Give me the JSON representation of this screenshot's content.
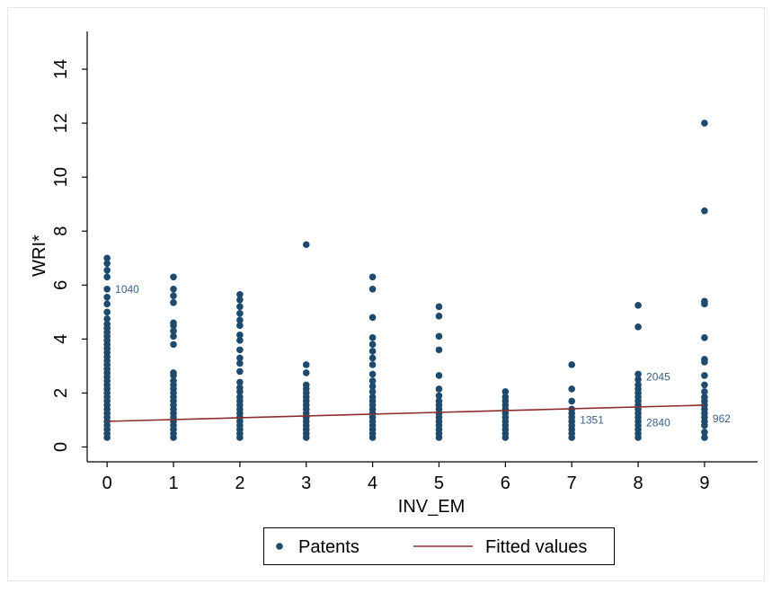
{
  "chart_data": {
    "type": "scatter",
    "xlabel": "INV_EM",
    "ylabel": "WRI*",
    "xlim": [
      -0.3,
      9.8
    ],
    "ylim": [
      -0.55,
      15.4
    ],
    "xticks": [
      0,
      1,
      2,
      3,
      4,
      5,
      6,
      7,
      8,
      9
    ],
    "yticks": [
      0,
      2,
      4,
      6,
      8,
      10,
      12,
      14
    ],
    "grid": false,
    "legend": {
      "placement": "bottom-center",
      "entries": [
        "Patents",
        "Fitted values"
      ]
    },
    "colors": {
      "patents": "#1e4a6e",
      "fitted": "#8c2d2d",
      "label": "#3a5f86",
      "frame": "#e6e6e6"
    },
    "series": [
      {
        "name": "Patents",
        "type": "scatter",
        "points": [
          {
            "x": 0,
            "y": 0.35
          },
          {
            "x": 0,
            "y": 0.5
          },
          {
            "x": 0,
            "y": 0.65
          },
          {
            "x": 0,
            "y": 0.8
          },
          {
            "x": 0,
            "y": 0.95
          },
          {
            "x": 0,
            "y": 1.1
          },
          {
            "x": 0,
            "y": 1.25
          },
          {
            "x": 0,
            "y": 1.4
          },
          {
            "x": 0,
            "y": 1.55
          },
          {
            "x": 0,
            "y": 1.7
          },
          {
            "x": 0,
            "y": 1.85
          },
          {
            "x": 0,
            "y": 2.0
          },
          {
            "x": 0,
            "y": 2.15
          },
          {
            "x": 0,
            "y": 2.3
          },
          {
            "x": 0,
            "y": 2.45
          },
          {
            "x": 0,
            "y": 2.6
          },
          {
            "x": 0,
            "y": 2.75
          },
          {
            "x": 0,
            "y": 2.9
          },
          {
            "x": 0,
            "y": 3.05
          },
          {
            "x": 0,
            "y": 3.2
          },
          {
            "x": 0,
            "y": 3.35
          },
          {
            "x": 0,
            "y": 3.5
          },
          {
            "x": 0,
            "y": 3.65
          },
          {
            "x": 0,
            "y": 3.8
          },
          {
            "x": 0,
            "y": 3.95
          },
          {
            "x": 0,
            "y": 4.1
          },
          {
            "x": 0,
            "y": 4.25
          },
          {
            "x": 0,
            "y": 4.4
          },
          {
            "x": 0,
            "y": 4.55
          },
          {
            "x": 0,
            "y": 4.75
          },
          {
            "x": 0,
            "y": 5.0
          },
          {
            "x": 0,
            "y": 5.3
          },
          {
            "x": 0,
            "y": 5.55
          },
          {
            "x": 0,
            "y": 5.85
          },
          {
            "x": 0,
            "y": 6.3
          },
          {
            "x": 0,
            "y": 6.55
          },
          {
            "x": 0,
            "y": 6.8
          },
          {
            "x": 0,
            "y": 7.0
          },
          {
            "x": 1,
            "y": 0.35
          },
          {
            "x": 1,
            "y": 0.5
          },
          {
            "x": 1,
            "y": 0.65
          },
          {
            "x": 1,
            "y": 0.8
          },
          {
            "x": 1,
            "y": 0.95
          },
          {
            "x": 1,
            "y": 1.1
          },
          {
            "x": 1,
            "y": 1.25
          },
          {
            "x": 1,
            "y": 1.4
          },
          {
            "x": 1,
            "y": 1.55
          },
          {
            "x": 1,
            "y": 1.7
          },
          {
            "x": 1,
            "y": 1.85
          },
          {
            "x": 1,
            "y": 2.0
          },
          {
            "x": 1,
            "y": 2.15
          },
          {
            "x": 1,
            "y": 2.3
          },
          {
            "x": 1,
            "y": 2.45
          },
          {
            "x": 1,
            "y": 2.65
          },
          {
            "x": 1,
            "y": 2.75
          },
          {
            "x": 1,
            "y": 3.8
          },
          {
            "x": 1,
            "y": 4.1
          },
          {
            "x": 1,
            "y": 4.3
          },
          {
            "x": 1,
            "y": 4.5
          },
          {
            "x": 1,
            "y": 4.6
          },
          {
            "x": 1,
            "y": 5.35
          },
          {
            "x": 1,
            "y": 5.6
          },
          {
            "x": 1,
            "y": 5.85
          },
          {
            "x": 1,
            "y": 6.3
          },
          {
            "x": 2,
            "y": 0.35
          },
          {
            "x": 2,
            "y": 0.5
          },
          {
            "x": 2,
            "y": 0.65
          },
          {
            "x": 2,
            "y": 0.8
          },
          {
            "x": 2,
            "y": 0.95
          },
          {
            "x": 2,
            "y": 1.1
          },
          {
            "x": 2,
            "y": 1.25
          },
          {
            "x": 2,
            "y": 1.4
          },
          {
            "x": 2,
            "y": 1.55
          },
          {
            "x": 2,
            "y": 1.7
          },
          {
            "x": 2,
            "y": 1.85
          },
          {
            "x": 2,
            "y": 2.05
          },
          {
            "x": 2,
            "y": 2.2
          },
          {
            "x": 2,
            "y": 2.4
          },
          {
            "x": 2,
            "y": 2.8
          },
          {
            "x": 2,
            "y": 3.1
          },
          {
            "x": 2,
            "y": 3.3
          },
          {
            "x": 2,
            "y": 3.6
          },
          {
            "x": 2,
            "y": 3.95
          },
          {
            "x": 2,
            "y": 4.15
          },
          {
            "x": 2,
            "y": 4.5
          },
          {
            "x": 2,
            "y": 4.7
          },
          {
            "x": 2,
            "y": 4.95
          },
          {
            "x": 2,
            "y": 5.2
          },
          {
            "x": 2,
            "y": 5.45
          },
          {
            "x": 2,
            "y": 5.65
          },
          {
            "x": 3,
            "y": 0.35
          },
          {
            "x": 3,
            "y": 0.5
          },
          {
            "x": 3,
            "y": 0.65
          },
          {
            "x": 3,
            "y": 0.8
          },
          {
            "x": 3,
            "y": 0.95
          },
          {
            "x": 3,
            "y": 1.1
          },
          {
            "x": 3,
            "y": 1.25
          },
          {
            "x": 3,
            "y": 1.4
          },
          {
            "x": 3,
            "y": 1.55
          },
          {
            "x": 3,
            "y": 1.7
          },
          {
            "x": 3,
            "y": 1.85
          },
          {
            "x": 3,
            "y": 2.0
          },
          {
            "x": 3,
            "y": 2.15
          },
          {
            "x": 3,
            "y": 2.3
          },
          {
            "x": 3,
            "y": 2.75
          },
          {
            "x": 3,
            "y": 3.05
          },
          {
            "x": 3,
            "y": 7.5
          },
          {
            "x": 4,
            "y": 0.35
          },
          {
            "x": 4,
            "y": 0.5
          },
          {
            "x": 4,
            "y": 0.65
          },
          {
            "x": 4,
            "y": 0.8
          },
          {
            "x": 4,
            "y": 0.95
          },
          {
            "x": 4,
            "y": 1.1
          },
          {
            "x": 4,
            "y": 1.25
          },
          {
            "x": 4,
            "y": 1.4
          },
          {
            "x": 4,
            "y": 1.55
          },
          {
            "x": 4,
            "y": 1.7
          },
          {
            "x": 4,
            "y": 1.85
          },
          {
            "x": 4,
            "y": 2.05
          },
          {
            "x": 4,
            "y": 2.25
          },
          {
            "x": 4,
            "y": 2.45
          },
          {
            "x": 4,
            "y": 2.7
          },
          {
            "x": 4,
            "y": 3.05
          },
          {
            "x": 4,
            "y": 3.3
          },
          {
            "x": 4,
            "y": 3.55
          },
          {
            "x": 4,
            "y": 3.8
          },
          {
            "x": 4,
            "y": 4.05
          },
          {
            "x": 4,
            "y": 4.8
          },
          {
            "x": 4,
            "y": 5.85
          },
          {
            "x": 4,
            "y": 6.3
          },
          {
            "x": 5,
            "y": 0.35
          },
          {
            "x": 5,
            "y": 0.5
          },
          {
            "x": 5,
            "y": 0.65
          },
          {
            "x": 5,
            "y": 0.8
          },
          {
            "x": 5,
            "y": 0.95
          },
          {
            "x": 5,
            "y": 1.1
          },
          {
            "x": 5,
            "y": 1.25
          },
          {
            "x": 5,
            "y": 1.4
          },
          {
            "x": 5,
            "y": 1.55
          },
          {
            "x": 5,
            "y": 1.7
          },
          {
            "x": 5,
            "y": 1.9
          },
          {
            "x": 5,
            "y": 2.15
          },
          {
            "x": 5,
            "y": 2.65
          },
          {
            "x": 5,
            "y": 3.6
          },
          {
            "x": 5,
            "y": 4.1
          },
          {
            "x": 5,
            "y": 4.85
          },
          {
            "x": 5,
            "y": 5.2
          },
          {
            "x": 6,
            "y": 0.35
          },
          {
            "x": 6,
            "y": 0.5
          },
          {
            "x": 6,
            "y": 0.65
          },
          {
            "x": 6,
            "y": 0.8
          },
          {
            "x": 6,
            "y": 0.95
          },
          {
            "x": 6,
            "y": 1.1
          },
          {
            "x": 6,
            "y": 1.25
          },
          {
            "x": 6,
            "y": 1.4
          },
          {
            "x": 6,
            "y": 1.55
          },
          {
            "x": 6,
            "y": 1.7
          },
          {
            "x": 6,
            "y": 1.85
          },
          {
            "x": 6,
            "y": 2.05
          },
          {
            "x": 7,
            "y": 0.35
          },
          {
            "x": 7,
            "y": 0.5
          },
          {
            "x": 7,
            "y": 0.65
          },
          {
            "x": 7,
            "y": 0.8
          },
          {
            "x": 7,
            "y": 0.95
          },
          {
            "x": 7,
            "y": 1.1
          },
          {
            "x": 7,
            "y": 1.25
          },
          {
            "x": 7,
            "y": 1.4
          },
          {
            "x": 7,
            "y": 1.7
          },
          {
            "x": 7,
            "y": 2.15
          },
          {
            "x": 7,
            "y": 3.05
          },
          {
            "x": 8,
            "y": 0.35
          },
          {
            "x": 8,
            "y": 0.5
          },
          {
            "x": 8,
            "y": 0.65
          },
          {
            "x": 8,
            "y": 0.8
          },
          {
            "x": 8,
            "y": 0.95
          },
          {
            "x": 8,
            "y": 1.1
          },
          {
            "x": 8,
            "y": 1.25
          },
          {
            "x": 8,
            "y": 1.4
          },
          {
            "x": 8,
            "y": 1.55
          },
          {
            "x": 8,
            "y": 1.7
          },
          {
            "x": 8,
            "y": 1.85
          },
          {
            "x": 8,
            "y": 2.0
          },
          {
            "x": 8,
            "y": 2.15
          },
          {
            "x": 8,
            "y": 2.3
          },
          {
            "x": 8,
            "y": 2.5
          },
          {
            "x": 8,
            "y": 2.7
          },
          {
            "x": 8,
            "y": 4.45
          },
          {
            "x": 8,
            "y": 5.25
          },
          {
            "x": 9,
            "y": 0.35
          },
          {
            "x": 9,
            "y": 0.55
          },
          {
            "x": 9,
            "y": 0.8
          },
          {
            "x": 9,
            "y": 0.95
          },
          {
            "x": 9,
            "y": 1.1
          },
          {
            "x": 9,
            "y": 1.25
          },
          {
            "x": 9,
            "y": 1.4
          },
          {
            "x": 9,
            "y": 1.55
          },
          {
            "x": 9,
            "y": 1.7
          },
          {
            "x": 9,
            "y": 1.85
          },
          {
            "x": 9,
            "y": 2.05
          },
          {
            "x": 9,
            "y": 2.3
          },
          {
            "x": 9,
            "y": 2.65
          },
          {
            "x": 9,
            "y": 3.15
          },
          {
            "x": 9,
            "y": 3.25
          },
          {
            "x": 9,
            "y": 4.05
          },
          {
            "x": 9,
            "y": 5.3
          },
          {
            "x": 9,
            "y": 5.4
          },
          {
            "x": 9,
            "y": 8.75
          },
          {
            "x": 9,
            "y": 12.0
          }
        ]
      },
      {
        "name": "Fitted values",
        "type": "line",
        "points": [
          {
            "x": 0,
            "y": 0.95
          },
          {
            "x": 9,
            "y": 1.55
          }
        ]
      }
    ],
    "annotations": [
      {
        "text": "1040",
        "x": 0,
        "y": 5.85
      },
      {
        "text": "1351",
        "x": 7,
        "y": 1.0
      },
      {
        "text": "2045",
        "x": 8,
        "y": 2.6
      },
      {
        "text": "2840",
        "x": 8,
        "y": 0.9
      },
      {
        "text": "962",
        "x": 9,
        "y": 1.05
      }
    ]
  }
}
